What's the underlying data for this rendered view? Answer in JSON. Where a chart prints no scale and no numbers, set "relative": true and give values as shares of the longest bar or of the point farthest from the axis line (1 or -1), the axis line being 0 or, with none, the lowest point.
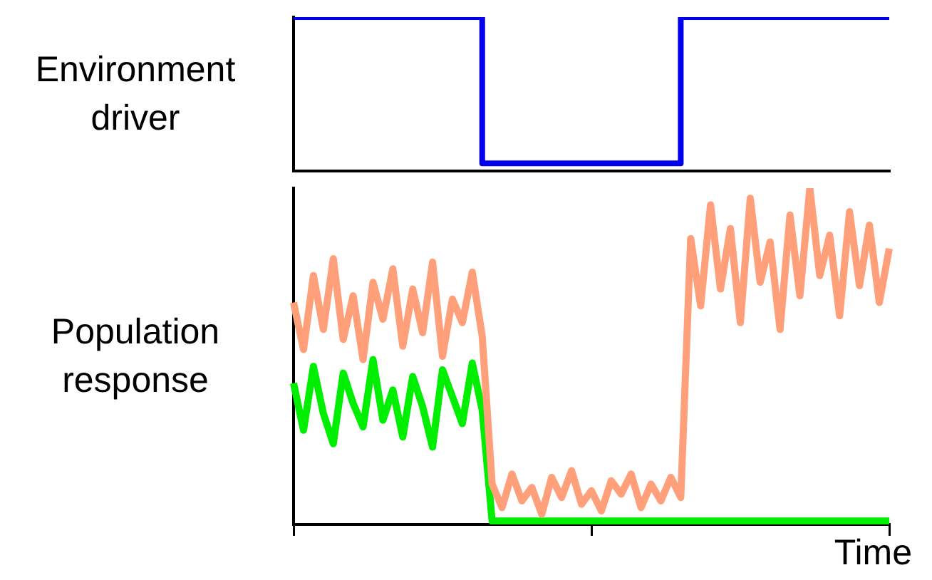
{
  "chart_data": [
    {
      "type": "step",
      "ylabel": "Environment driver",
      "relative": true,
      "categories": [
        null,
        null,
        null,
        null,
        null,
        null,
        null,
        null,
        null,
        null,
        null,
        null,
        null,
        null,
        null,
        null,
        null,
        null,
        null,
        null,
        null,
        null,
        null,
        null,
        null,
        null,
        null,
        null,
        null,
        null,
        null,
        null,
        null,
        null,
        null,
        null,
        null,
        null,
        null,
        null,
        null,
        null,
        null,
        null,
        null,
        null,
        null,
        null,
        null,
        null,
        null,
        null,
        null,
        null,
        null,
        null,
        null,
        null,
        null,
        null,
        null
      ],
      "series": [
        {
          "color": "#0000ee",
          "values": [
            1,
            1,
            1,
            1,
            1,
            1,
            1,
            1,
            1,
            1,
            1,
            1,
            1,
            1,
            1,
            1,
            1,
            1,
            1,
            1,
            0.05,
            0.05,
            0.05,
            0.05,
            0.05,
            0.05,
            0.05,
            0.05,
            0.05,
            0.05,
            0.05,
            0.05,
            0.05,
            0.05,
            0.05,
            0.05,
            0.05,
            0.05,
            0.05,
            0.05,
            1,
            1,
            1,
            1,
            1,
            1,
            1,
            1,
            1,
            1,
            1,
            1,
            1,
            1,
            1,
            1,
            1,
            1,
            1,
            1,
            1
          ]
        }
      ]
    },
    {
      "type": "line",
      "ylabel": "Population response",
      "xlabel": "Time",
      "relative": true,
      "categories": [
        null,
        null,
        null,
        null,
        null,
        null,
        null,
        null,
        null,
        null,
        null,
        null,
        null,
        null,
        null,
        null,
        null,
        null,
        null,
        null,
        null,
        null,
        null,
        null,
        null,
        null,
        null,
        null,
        null,
        null,
        null,
        null,
        null,
        null,
        null,
        null,
        null,
        null,
        null,
        null,
        null,
        null,
        null,
        null,
        null,
        null,
        null,
        null,
        null,
        null,
        null,
        null,
        null,
        null,
        null,
        null,
        null,
        null,
        null,
        null,
        null
      ],
      "series": [
        {
          "color": "#ffa07a",
          "values": [
            0.66,
            0.52,
            0.74,
            0.58,
            0.79,
            0.55,
            0.68,
            0.49,
            0.72,
            0.61,
            0.76,
            0.53,
            0.7,
            0.57,
            0.78,
            0.5,
            0.67,
            0.6,
            0.75,
            0.56,
            0.12,
            0.05,
            0.15,
            0.07,
            0.11,
            0.03,
            0.14,
            0.08,
            0.16,
            0.06,
            0.1,
            0.04,
            0.13,
            0.09,
            0.15,
            0.05,
            0.12,
            0.07,
            0.14,
            0.08,
            0.85,
            0.65,
            0.95,
            0.7,
            0.88,
            0.6,
            0.97,
            0.72,
            0.84,
            0.58,
            0.92,
            0.68,
            1.0,
            0.74,
            0.86,
            0.62,
            0.93,
            0.71,
            0.89,
            0.66,
            0.82
          ]
        },
        {
          "color": "#00ee00",
          "values": [
            0.42,
            0.28,
            0.47,
            0.33,
            0.24,
            0.45,
            0.36,
            0.29,
            0.49,
            0.31,
            0.4,
            0.26,
            0.44,
            0.35,
            0.23,
            0.46,
            0.38,
            0.3,
            0.48,
            0.34,
            0.01,
            0.01,
            0.01,
            0.01,
            0.01,
            0.01,
            0.01,
            0.01,
            0.01,
            0.01,
            0.01,
            0.01,
            0.01,
            0.01,
            0.01,
            0.01,
            0.01,
            0.01,
            0.01,
            0.01,
            0.01,
            0.01,
            0.01,
            0.01,
            0.01,
            0.01,
            0.01,
            0.01,
            0.01,
            0.01,
            0.01,
            0.01,
            0.01,
            0.01,
            0.01,
            0.01,
            0.01,
            0.01,
            0.01,
            0.01,
            0.01
          ]
        }
      ]
    }
  ]
}
